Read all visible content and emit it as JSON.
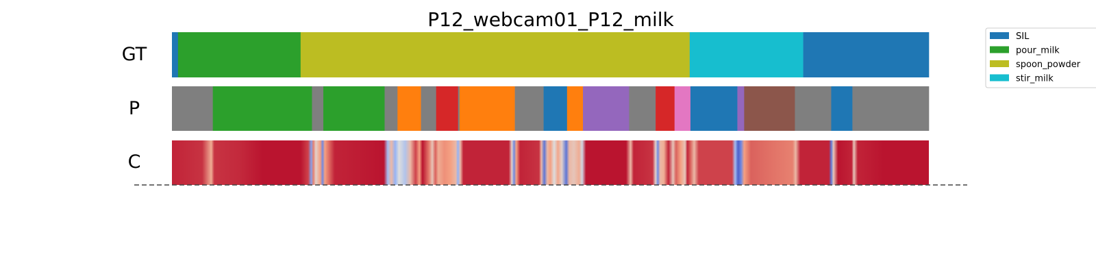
{
  "chart_data": {
    "type": "segmentation-timeline",
    "title": "P12_webcam01_P12_milk",
    "x_range": [
      0,
      1000
    ],
    "colors": {
      "SIL": "#1f77b4",
      "pour_milk": "#2ca02c",
      "spoon_powder": "#bcbd22",
      "stir_milk": "#17becf",
      "gray": "#7f7f7f",
      "orange": "#ff7f0e",
      "red": "#d62728",
      "purple": "#9467bd",
      "pink": "#e377c2",
      "brown": "#8c564b"
    },
    "legend": [
      {
        "label": "SIL",
        "color_key": "SIL"
      },
      {
        "label": "pour_milk",
        "color_key": "pour_milk"
      },
      {
        "label": "spoon_powder",
        "color_key": "spoon_powder"
      },
      {
        "label": "stir_milk",
        "color_key": "stir_milk"
      }
    ],
    "rows": [
      {
        "label": "GT",
        "segments": [
          {
            "start": 0,
            "end": 8,
            "color_key": "SIL"
          },
          {
            "start": 8,
            "end": 170,
            "color_key": "pour_milk"
          },
          {
            "start": 170,
            "end": 684,
            "color_key": "spoon_powder"
          },
          {
            "start": 684,
            "end": 834,
            "color_key": "stir_milk"
          },
          {
            "start": 834,
            "end": 1000,
            "color_key": "SIL"
          }
        ]
      },
      {
        "label": "P",
        "segments": [
          {
            "start": 0,
            "end": 54,
            "color_key": "gray"
          },
          {
            "start": 54,
            "end": 185,
            "color_key": "pour_milk"
          },
          {
            "start": 185,
            "end": 200,
            "color_key": "gray"
          },
          {
            "start": 200,
            "end": 281,
            "color_key": "pour_milk"
          },
          {
            "start": 281,
            "end": 298,
            "color_key": "gray"
          },
          {
            "start": 298,
            "end": 329,
            "color_key": "orange"
          },
          {
            "start": 329,
            "end": 349,
            "color_key": "gray"
          },
          {
            "start": 349,
            "end": 378,
            "color_key": "red"
          },
          {
            "start": 378,
            "end": 380,
            "color_key": "gray"
          },
          {
            "start": 380,
            "end": 453,
            "color_key": "orange"
          },
          {
            "start": 453,
            "end": 491,
            "color_key": "gray"
          },
          {
            "start": 491,
            "end": 522,
            "color_key": "SIL"
          },
          {
            "start": 522,
            "end": 543,
            "color_key": "orange"
          },
          {
            "start": 543,
            "end": 604,
            "color_key": "purple"
          },
          {
            "start": 604,
            "end": 639,
            "color_key": "gray"
          },
          {
            "start": 639,
            "end": 664,
            "color_key": "red"
          },
          {
            "start": 664,
            "end": 685,
            "color_key": "pink"
          },
          {
            "start": 685,
            "end": 747,
            "color_key": "SIL"
          },
          {
            "start": 747,
            "end": 756,
            "color_key": "purple"
          },
          {
            "start": 756,
            "end": 823,
            "color_key": "brown"
          },
          {
            "start": 823,
            "end": 871,
            "color_key": "gray"
          },
          {
            "start": 871,
            "end": 899,
            "color_key": "SIL"
          },
          {
            "start": 899,
            "end": 1000,
            "color_key": "gray"
          }
        ]
      },
      {
        "label": "C",
        "confidence": [
          [
            0,
            0.9
          ],
          [
            40,
            0.85
          ],
          [
            52,
            0.4
          ],
          [
            56,
            0.85
          ],
          [
            90,
            0.88
          ],
          [
            120,
            0.95
          ],
          [
            170,
            0.95
          ],
          [
            180,
            0.8
          ],
          [
            184,
            -0.6
          ],
          [
            187,
            0.6
          ],
          [
            190,
            0.1
          ],
          [
            196,
            0.5
          ],
          [
            199,
            -0.7
          ],
          [
            202,
            0.5
          ],
          [
            215,
            0.9
          ],
          [
            280,
            0.95
          ],
          [
            285,
            -0.4
          ],
          [
            290,
            0.3
          ],
          [
            295,
            -0.5
          ],
          [
            300,
            0.0
          ],
          [
            308,
            -0.3
          ],
          [
            315,
            0.3
          ],
          [
            322,
            0.8
          ],
          [
            327,
            0.5
          ],
          [
            331,
            0.95
          ],
          [
            340,
            0.6
          ],
          [
            344,
            0.2
          ],
          [
            348,
            0.7
          ],
          [
            352,
            0.4
          ],
          [
            360,
            0.55
          ],
          [
            368,
            0.5
          ],
          [
            375,
            0.3
          ],
          [
            378,
            -0.5
          ],
          [
            381,
            0.3
          ],
          [
            385,
            0.9
          ],
          [
            445,
            0.9
          ],
          [
            449,
            0.1
          ],
          [
            452,
            -0.7
          ],
          [
            455,
            0.5
          ],
          [
            460,
            0.9
          ],
          [
            485,
            0.85
          ],
          [
            488,
            0.3
          ],
          [
            492,
            -0.8
          ],
          [
            496,
            0.3
          ],
          [
            500,
            0.5
          ],
          [
            505,
            0.0
          ],
          [
            510,
            0.45
          ],
          [
            515,
            0.1
          ],
          [
            521,
            -0.8
          ],
          [
            525,
            0.3
          ],
          [
            531,
            0.2
          ],
          [
            538,
            0.4
          ],
          [
            542,
            -0.1
          ],
          [
            547,
            0.95
          ],
          [
            600,
            0.95
          ],
          [
            606,
            0.3
          ],
          [
            610,
            0.9
          ],
          [
            635,
            0.85
          ],
          [
            639,
            0.1
          ],
          [
            642,
            -0.7
          ],
          [
            645,
            0.3
          ],
          [
            650,
            0.4
          ],
          [
            656,
            0.9
          ],
          [
            662,
            0.2
          ],
          [
            666,
            0.7
          ],
          [
            672,
            0.5
          ],
          [
            678,
            0.2
          ],
          [
            681,
            0.9
          ],
          [
            685,
            0.7
          ],
          [
            690,
            0.3
          ],
          [
            696,
            0.8
          ],
          [
            740,
            0.8
          ],
          [
            744,
            -0.4
          ],
          [
            748,
            -0.9
          ],
          [
            752,
            -0.7
          ],
          [
            756,
            0.5
          ],
          [
            765,
            0.7
          ],
          [
            790,
            0.65
          ],
          [
            820,
            0.6
          ],
          [
            824,
            0.3
          ],
          [
            830,
            0.9
          ],
          [
            868,
            0.9
          ],
          [
            871,
            -0.8
          ],
          [
            874,
            0.2
          ],
          [
            880,
            0.95
          ],
          [
            898,
            0.9
          ],
          [
            901,
            0.2
          ],
          [
            906,
            0.9
          ],
          [
            940,
            0.95
          ],
          [
            1000,
            0.95
          ]
        ]
      }
    ]
  }
}
